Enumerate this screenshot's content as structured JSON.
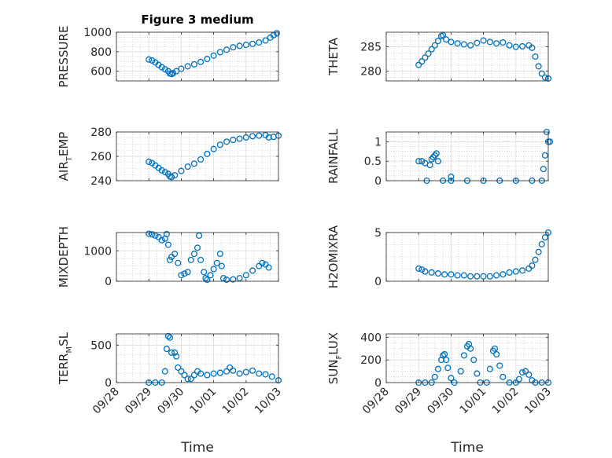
{
  "figure_title": "Figure 3 medium",
  "x_axis_label": "Time",
  "x_tick_labels": [
    "09/28",
    "09/29",
    "09/30",
    "10/01",
    "10/02",
    "10/03"
  ],
  "colors": {
    "marker": "#0072BD",
    "axis": "#262626",
    "grid": "#bdbdbd"
  },
  "chart_data": [
    {
      "type": "scatter",
      "ylabel": "PRESSURE",
      "ylim": [
        500,
        1000
      ],
      "yticks": [
        "600",
        "800",
        "1000"
      ],
      "ytick_values": [
        600,
        800,
        1000
      ],
      "xlim": [
        0,
        5
      ],
      "points": [
        [
          1.0,
          720
        ],
        [
          1.1,
          710
        ],
        [
          1.2,
          690
        ],
        [
          1.3,
          665
        ],
        [
          1.4,
          640
        ],
        [
          1.5,
          620
        ],
        [
          1.6,
          600
        ],
        [
          1.65,
          575
        ],
        [
          1.7,
          570
        ],
        [
          1.75,
          580
        ],
        [
          1.85,
          600
        ],
        [
          2.0,
          625
        ],
        [
          2.2,
          650
        ],
        [
          2.4,
          670
        ],
        [
          2.6,
          695
        ],
        [
          2.8,
          725
        ],
        [
          3.0,
          760
        ],
        [
          3.2,
          795
        ],
        [
          3.4,
          820
        ],
        [
          3.6,
          845
        ],
        [
          3.8,
          860
        ],
        [
          4.0,
          870
        ],
        [
          4.2,
          880
        ],
        [
          4.4,
          895
        ],
        [
          4.6,
          915
        ],
        [
          4.75,
          945
        ],
        [
          4.85,
          970
        ],
        [
          4.95,
          990
        ]
      ]
    },
    {
      "type": "scatter",
      "ylabel": "THETA",
      "ylim": [
        278,
        288
      ],
      "yticks": [
        "280",
        "285"
      ],
      "ytick_values": [
        280,
        285
      ],
      "xlim": [
        0,
        5
      ],
      "points": [
        [
          1.0,
          281.3
        ],
        [
          1.1,
          282.0
        ],
        [
          1.2,
          282.8
        ],
        [
          1.3,
          283.6
        ],
        [
          1.4,
          284.5
        ],
        [
          1.5,
          285.3
        ],
        [
          1.6,
          286.2
        ],
        [
          1.7,
          287.2
        ],
        [
          1.75,
          287.4
        ],
        [
          1.85,
          286.5
        ],
        [
          2.0,
          286.0
        ],
        [
          2.2,
          285.7
        ],
        [
          2.4,
          285.5
        ],
        [
          2.6,
          285.3
        ],
        [
          2.8,
          285.8
        ],
        [
          3.0,
          286.3
        ],
        [
          3.2,
          286.0
        ],
        [
          3.4,
          285.7
        ],
        [
          3.6,
          285.9
        ],
        [
          3.8,
          285.3
        ],
        [
          4.0,
          285.0
        ],
        [
          4.2,
          285.1
        ],
        [
          4.4,
          285.3
        ],
        [
          4.5,
          284.8
        ],
        [
          4.6,
          283.0
        ],
        [
          4.7,
          281.0
        ],
        [
          4.8,
          279.5
        ],
        [
          4.9,
          278.7
        ],
        [
          5.0,
          278.5
        ]
      ]
    },
    {
      "type": "scatter",
      "ylabel": "AIR",
      "ylabel_sub": "T",
      "ylabel_tail": "EMP",
      "ylim": [
        240,
        280
      ],
      "yticks": [
        "240",
        "260",
        "280"
      ],
      "ytick_values": [
        240,
        260,
        280
      ],
      "xlim": [
        0,
        5
      ],
      "points": [
        [
          1.0,
          255.5
        ],
        [
          1.1,
          254.5
        ],
        [
          1.2,
          252.5
        ],
        [
          1.3,
          250.5
        ],
        [
          1.4,
          248.5
        ],
        [
          1.5,
          247.0
        ],
        [
          1.6,
          245.5
        ],
        [
          1.65,
          243.5
        ],
        [
          1.7,
          243.0
        ],
        [
          1.8,
          244.5
        ],
        [
          2.0,
          248.0
        ],
        [
          2.2,
          251.5
        ],
        [
          2.4,
          254.0
        ],
        [
          2.6,
          257.5
        ],
        [
          2.8,
          262.0
        ],
        [
          3.0,
          266.0
        ],
        [
          3.2,
          269.5
        ],
        [
          3.4,
          272.0
        ],
        [
          3.6,
          273.5
        ],
        [
          3.8,
          274.5
        ],
        [
          4.0,
          275.5
        ],
        [
          4.2,
          276.5
        ],
        [
          4.4,
          277.0
        ],
        [
          4.6,
          277.5
        ],
        [
          4.7,
          275.5
        ],
        [
          4.85,
          276.0
        ],
        [
          5.0,
          277.0
        ]
      ]
    },
    {
      "type": "scatter",
      "ylabel": "RAINFALL",
      "ylim": [
        0,
        1.25
      ],
      "yticks": [
        "0",
        "0.5",
        "1"
      ],
      "ytick_values": [
        0,
        0.5,
        1
      ],
      "xlim": [
        0,
        5
      ],
      "points": [
        [
          1.0,
          0.5
        ],
        [
          1.1,
          0.5
        ],
        [
          1.2,
          0.45
        ],
        [
          1.25,
          0.0
        ],
        [
          1.35,
          0.4
        ],
        [
          1.4,
          0.55
        ],
        [
          1.45,
          0.6
        ],
        [
          1.5,
          0.65
        ],
        [
          1.55,
          0.7
        ],
        [
          1.6,
          0.5
        ],
        [
          1.75,
          0.0
        ],
        [
          2.0,
          0.1
        ],
        [
          2.0,
          0.0
        ],
        [
          2.5,
          0.0
        ],
        [
          3.0,
          0.0
        ],
        [
          3.5,
          0.0
        ],
        [
          4.0,
          0.0
        ],
        [
          4.5,
          0.0
        ],
        [
          4.8,
          0.0
        ],
        [
          4.85,
          0.3
        ],
        [
          4.9,
          0.65
        ],
        [
          4.95,
          1.25
        ],
        [
          5.0,
          1.0
        ],
        [
          5.05,
          1.0
        ]
      ]
    },
    {
      "type": "scatter",
      "ylabel": "MIXDEPTH",
      "ylim": [
        0,
        1600
      ],
      "yticks": [
        "0",
        "1000"
      ],
      "ytick_values": [
        0,
        1000
      ],
      "xlim": [
        0,
        5
      ],
      "points": [
        [
          1.0,
          1560
        ],
        [
          1.1,
          1540
        ],
        [
          1.2,
          1500
        ],
        [
          1.3,
          1450
        ],
        [
          1.4,
          1350
        ],
        [
          1.5,
          1400
        ],
        [
          1.55,
          1550
        ],
        [
          1.6,
          1200
        ],
        [
          1.65,
          700
        ],
        [
          1.7,
          800
        ],
        [
          1.8,
          900
        ],
        [
          1.9,
          600
        ],
        [
          2.0,
          200
        ],
        [
          2.1,
          250
        ],
        [
          2.2,
          300
        ],
        [
          2.3,
          700
        ],
        [
          2.4,
          900
        ],
        [
          2.5,
          1100
        ],
        [
          2.55,
          1500
        ],
        [
          2.6,
          700
        ],
        [
          2.7,
          300
        ],
        [
          2.75,
          100
        ],
        [
          2.8,
          50
        ],
        [
          2.9,
          200
        ],
        [
          3.0,
          400
        ],
        [
          3.1,
          600
        ],
        [
          3.2,
          900
        ],
        [
          3.25,
          500
        ],
        [
          3.3,
          100
        ],
        [
          3.4,
          50
        ],
        [
          3.6,
          60
        ],
        [
          3.8,
          100
        ],
        [
          4.0,
          200
        ],
        [
          4.2,
          350
        ],
        [
          4.4,
          500
        ],
        [
          4.5,
          600
        ],
        [
          4.6,
          550
        ],
        [
          4.7,
          450
        ]
      ]
    },
    {
      "type": "scatter",
      "ylabel": "H2OMIXRA",
      "ylim": [
        0,
        5
      ],
      "yticks": [
        "0",
        "5"
      ],
      "ytick_values": [
        0,
        5
      ],
      "xlim": [
        0,
        5
      ],
      "points": [
        [
          1.0,
          1.3
        ],
        [
          1.1,
          1.2
        ],
        [
          1.2,
          1.0
        ],
        [
          1.4,
          0.9
        ],
        [
          1.6,
          0.8
        ],
        [
          1.8,
          0.7
        ],
        [
          2.0,
          0.7
        ],
        [
          2.2,
          0.6
        ],
        [
          2.4,
          0.6
        ],
        [
          2.6,
          0.5
        ],
        [
          2.8,
          0.5
        ],
        [
          3.0,
          0.5
        ],
        [
          3.2,
          0.5
        ],
        [
          3.4,
          0.6
        ],
        [
          3.6,
          0.7
        ],
        [
          3.8,
          0.9
        ],
        [
          4.0,
          1.0
        ],
        [
          4.2,
          1.1
        ],
        [
          4.4,
          1.3
        ],
        [
          4.5,
          1.6
        ],
        [
          4.6,
          2.2
        ],
        [
          4.7,
          3.0
        ],
        [
          4.8,
          3.8
        ],
        [
          4.9,
          4.5
        ],
        [
          5.0,
          5.0
        ]
      ]
    },
    {
      "type": "scatter",
      "ylabel": "TERR",
      "ylabel_sub": "M",
      "ylabel_tail": "SL",
      "ylim": [
        0,
        650
      ],
      "yticks": [
        "0",
        "500"
      ],
      "ytick_values": [
        0,
        500
      ],
      "xlim": [
        0,
        5
      ],
      "points": [
        [
          1.0,
          0
        ],
        [
          1.2,
          0
        ],
        [
          1.4,
          0
        ],
        [
          1.5,
          150
        ],
        [
          1.55,
          450
        ],
        [
          1.6,
          620
        ],
        [
          1.65,
          600
        ],
        [
          1.7,
          400
        ],
        [
          1.8,
          400
        ],
        [
          1.85,
          350
        ],
        [
          1.9,
          200
        ],
        [
          2.0,
          150
        ],
        [
          2.1,
          100
        ],
        [
          2.2,
          50
        ],
        [
          2.3,
          50
        ],
        [
          2.4,
          100
        ],
        [
          2.5,
          150
        ],
        [
          2.6,
          120
        ],
        [
          2.8,
          100
        ],
        [
          3.0,
          120
        ],
        [
          3.2,
          130
        ],
        [
          3.4,
          150
        ],
        [
          3.5,
          200
        ],
        [
          3.6,
          160
        ],
        [
          3.8,
          120
        ],
        [
          4.0,
          140
        ],
        [
          4.2,
          160
        ],
        [
          4.4,
          120
        ],
        [
          4.6,
          110
        ],
        [
          4.8,
          80
        ],
        [
          5.0,
          30
        ]
      ]
    },
    {
      "type": "scatter",
      "ylabel": "SUN",
      "ylabel_sub": "F",
      "ylabel_tail": "LUX",
      "ylim": [
        0,
        430
      ],
      "yticks": [
        "0",
        "200",
        "400"
      ],
      "ytick_values": [
        0,
        200,
        400
      ],
      "xlim": [
        0,
        5
      ],
      "points": [
        [
          1.0,
          0
        ],
        [
          1.2,
          0
        ],
        [
          1.4,
          0
        ],
        [
          1.5,
          50
        ],
        [
          1.6,
          120
        ],
        [
          1.7,
          200
        ],
        [
          1.75,
          240
        ],
        [
          1.8,
          250
        ],
        [
          1.85,
          200
        ],
        [
          1.9,
          130
        ],
        [
          2.0,
          40
        ],
        [
          2.1,
          0
        ],
        [
          2.3,
          100
        ],
        [
          2.4,
          240
        ],
        [
          2.5,
          320
        ],
        [
          2.55,
          340
        ],
        [
          2.6,
          300
        ],
        [
          2.7,
          200
        ],
        [
          2.8,
          80
        ],
        [
          2.9,
          0
        ],
        [
          3.1,
          0
        ],
        [
          3.2,
          120
        ],
        [
          3.3,
          280
        ],
        [
          3.35,
          300
        ],
        [
          3.4,
          250
        ],
        [
          3.5,
          150
        ],
        [
          3.6,
          50
        ],
        [
          3.8,
          0
        ],
        [
          4.0,
          0
        ],
        [
          4.1,
          30
        ],
        [
          4.2,
          90
        ],
        [
          4.3,
          100
        ],
        [
          4.4,
          70
        ],
        [
          4.5,
          20
        ],
        [
          4.6,
          0
        ],
        [
          4.8,
          0
        ],
        [
          5.0,
          0
        ]
      ]
    }
  ]
}
